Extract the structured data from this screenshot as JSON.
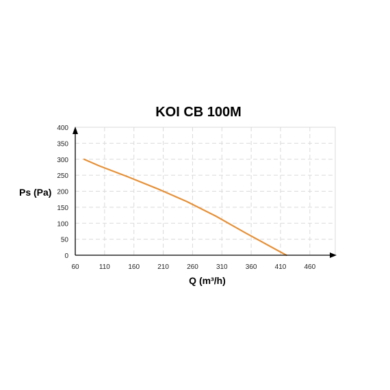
{
  "chart_data": {
    "type": "line",
    "title": "KOI CB 100M",
    "xlabel": "Q (m³/h)",
    "ylabel": "Ps (Pa)",
    "xlim": [
      60,
      500
    ],
    "ylim": [
      0,
      400
    ],
    "x_ticks": [
      60,
      110,
      160,
      210,
      260,
      310,
      360,
      410,
      460
    ],
    "y_ticks": [
      0,
      50,
      100,
      150,
      200,
      250,
      300,
      350,
      400
    ],
    "grid": true,
    "series": [
      {
        "color": "#e69138",
        "x": [
          75,
          100,
          150,
          200,
          250,
          300,
          350,
          390,
          420
        ],
        "y": [
          300,
          280,
          245,
          208,
          168,
          122,
          70,
          30,
          0
        ]
      }
    ]
  }
}
